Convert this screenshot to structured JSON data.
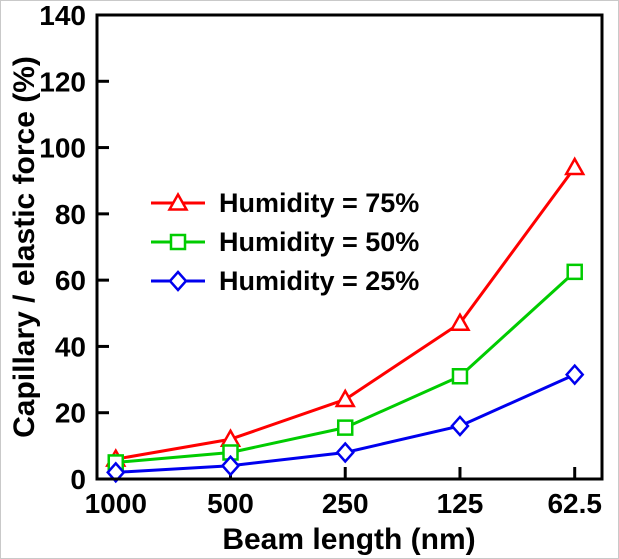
{
  "chart_data": {
    "type": "line",
    "title": "",
    "xlabel": "Beam length (nm)",
    "ylabel": "Capillary / elastic force (%)",
    "x_scale": "log2-reversed",
    "x_values": [
      1000,
      500,
      250,
      125,
      62.5
    ],
    "x_tick_labels": [
      "1000",
      "500",
      "250",
      "125",
      "62.5"
    ],
    "y_ticks": [
      0,
      20,
      40,
      60,
      80,
      100,
      120,
      140
    ],
    "ylim": [
      0,
      140
    ],
    "grid": false,
    "legend_position": "upper-left",
    "series": [
      {
        "name": "Humidity = 75%",
        "color": "#ff0000",
        "marker": "triangle",
        "values": [
          6,
          12,
          24,
          47,
          94
        ]
      },
      {
        "name": "Humidity = 50%",
        "color": "#00cc00",
        "marker": "square",
        "values": [
          5,
          8,
          15.5,
          31,
          62.5
        ]
      },
      {
        "name": "Humidity = 25%",
        "color": "#0000ee",
        "marker": "diamond",
        "values": [
          2,
          4,
          8,
          16,
          31.5
        ]
      }
    ]
  }
}
